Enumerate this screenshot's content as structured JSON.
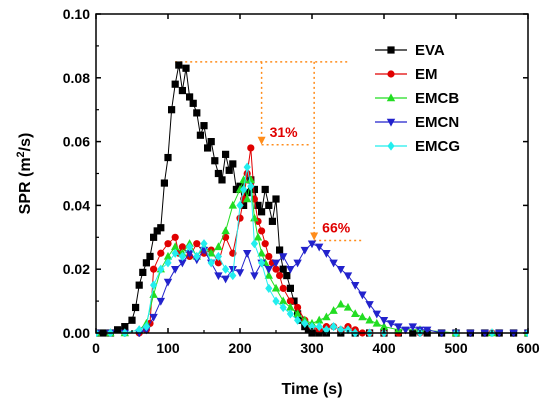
{
  "chart_data": {
    "type": "line",
    "xlabel": "Time (s)",
    "ylabel_main": "SPR (m",
    "ylabel_sup": "2",
    "ylabel_tail": "/s)",
    "xlim": [
      0,
      600
    ],
    "ylim": [
      0,
      0.1
    ],
    "xticks": [
      0,
      100,
      200,
      300,
      400,
      500,
      600
    ],
    "yticks": [
      0.0,
      0.02,
      0.04,
      0.06,
      0.08,
      0.1
    ],
    "ytick_labels": [
      "0.00",
      "0.02",
      "0.04",
      "0.06",
      "0.08",
      "0.10"
    ],
    "grid": false,
    "legend_position": "top-right",
    "annotation_color": "#ff8c1a",
    "annotation_text_color": "#e00000",
    "annotations": [
      {
        "text": "31%",
        "x": 230,
        "from_y": 0.085,
        "to_y": 0.059
      },
      {
        "text": "66%",
        "x": 303,
        "from_y": 0.085,
        "to_y": 0.029
      }
    ],
    "series": [
      {
        "name": "EVA",
        "color": "#000000",
        "marker": "square",
        "x": [
          0,
          10,
          20,
          30,
          40,
          50,
          55,
          60,
          65,
          70,
          75,
          80,
          85,
          90,
          95,
          100,
          105,
          110,
          115,
          120,
          125,
          130,
          135,
          140,
          145,
          150,
          155,
          160,
          165,
          170,
          175,
          180,
          185,
          190,
          195,
          200,
          205,
          210,
          215,
          220,
          225,
          230,
          235,
          240,
          245,
          250,
          255,
          260,
          265,
          270,
          275,
          280,
          285,
          290,
          295,
          300,
          310,
          320,
          340,
          360,
          380,
          400,
          420,
          440,
          460,
          480,
          500,
          520,
          540,
          560,
          580,
          600
        ],
        "y": [
          0,
          0,
          0,
          0.001,
          0.002,
          0.004,
          0.008,
          0.015,
          0.019,
          0.022,
          0.024,
          0.03,
          0.032,
          0.033,
          0.047,
          0.055,
          0.07,
          0.078,
          0.084,
          0.076,
          0.083,
          0.074,
          0.072,
          0.069,
          0.062,
          0.065,
          0.058,
          0.06,
          0.054,
          0.05,
          0.048,
          0.056,
          0.051,
          0.053,
          0.045,
          0.046,
          0.04,
          0.044,
          0.048,
          0.045,
          0.04,
          0.038,
          0.045,
          0.04,
          0.035,
          0.042,
          0.026,
          0.02,
          0.018,
          0.014,
          0.01,
          0.006,
          0.004,
          0.002,
          0.001,
          0,
          0,
          0,
          0,
          0,
          0,
          0,
          0,
          0,
          0,
          0,
          0,
          0,
          0,
          0,
          0,
          0
        ]
      },
      {
        "name": "EM",
        "color": "#e00000",
        "marker": "circle",
        "x": [
          0,
          20,
          40,
          60,
          70,
          75,
          80,
          90,
          100,
          110,
          115,
          120,
          130,
          140,
          150,
          160,
          170,
          180,
          190,
          200,
          205,
          210,
          215,
          220,
          225,
          230,
          235,
          240,
          245,
          250,
          255,
          260,
          270,
          280,
          290,
          300,
          310,
          320,
          330,
          340,
          350,
          360,
          370,
          380,
          400,
          420,
          450,
          500,
          550,
          600
        ],
        "y": [
          0,
          0,
          0,
          0,
          0.001,
          0.003,
          0.02,
          0.025,
          0.028,
          0.03,
          0.025,
          0.027,
          0.024,
          0.028,
          0.025,
          0.026,
          0.022,
          0.03,
          0.025,
          0.036,
          0.042,
          0.05,
          0.058,
          0.042,
          0.035,
          0.032,
          0.028,
          0.024,
          0.022,
          0.02,
          0.018,
          0.014,
          0.01,
          0.008,
          0.004,
          0.002,
          0.001,
          0.002,
          0.002,
          0.001,
          0.002,
          0.001,
          0,
          0,
          0,
          0,
          0,
          0,
          0,
          0
        ]
      },
      {
        "name": "EMCB",
        "color": "#22dd22",
        "marker": "triangle-up",
        "x": [
          0,
          20,
          40,
          60,
          70,
          80,
          90,
          100,
          110,
          120,
          130,
          140,
          150,
          160,
          170,
          180,
          190,
          200,
          205,
          210,
          215,
          220,
          225,
          230,
          235,
          240,
          250,
          260,
          270,
          280,
          290,
          300,
          310,
          320,
          330,
          340,
          350,
          360,
          370,
          380,
          390,
          400,
          420,
          450,
          500,
          550,
          600
        ],
        "y": [
          0,
          0,
          0,
          0.001,
          0.003,
          0.012,
          0.02,
          0.024,
          0.027,
          0.025,
          0.028,
          0.024,
          0.027,
          0.025,
          0.027,
          0.032,
          0.04,
          0.045,
          0.048,
          0.042,
          0.048,
          0.036,
          0.03,
          0.025,
          0.022,
          0.018,
          0.014,
          0.01,
          0.008,
          0.006,
          0.004,
          0.003,
          0.004,
          0.005,
          0.007,
          0.009,
          0.008,
          0.006,
          0.005,
          0.004,
          0.003,
          0.002,
          0.001,
          0.001,
          0,
          0,
          0
        ]
      },
      {
        "name": "EMCN",
        "color": "#2222cc",
        "marker": "triangle-down",
        "x": [
          0,
          20,
          40,
          60,
          70,
          80,
          90,
          100,
          110,
          120,
          130,
          140,
          150,
          160,
          170,
          180,
          190,
          200,
          210,
          220,
          230,
          240,
          250,
          260,
          270,
          280,
          290,
          300,
          310,
          320,
          330,
          340,
          350,
          360,
          370,
          380,
          390,
          400,
          410,
          420,
          430,
          440,
          450,
          460,
          480,
          500,
          520,
          540,
          560,
          580,
          600
        ],
        "y": [
          0,
          0,
          0,
          0,
          0.001,
          0.005,
          0.01,
          0.016,
          0.02,
          0.022,
          0.025,
          0.023,
          0.026,
          0.022,
          0.018,
          0.017,
          0.02,
          0.019,
          0.025,
          0.018,
          0.022,
          0.02,
          0.022,
          0.024,
          0.02,
          0.022,
          0.026,
          0.028,
          0.027,
          0.025,
          0.022,
          0.02,
          0.018,
          0.015,
          0.012,
          0.009,
          0.006,
          0.004,
          0.003,
          0.002,
          0.001,
          0.002,
          0.001,
          0.001,
          0,
          0,
          0,
          0,
          0,
          0,
          0
        ]
      },
      {
        "name": "EMCG",
        "color": "#22eeee",
        "marker": "diamond",
        "x": [
          0,
          20,
          40,
          60,
          70,
          80,
          90,
          100,
          110,
          120,
          130,
          140,
          150,
          160,
          170,
          180,
          190,
          200,
          205,
          210,
          215,
          220,
          230,
          240,
          250,
          260,
          270,
          280,
          290,
          300,
          310,
          320,
          330,
          340,
          350,
          360,
          380,
          400,
          450,
          500,
          550,
          600
        ],
        "y": [
          0,
          0,
          0,
          0.001,
          0.002,
          0.015,
          0.02,
          0.022,
          0.025,
          0.024,
          0.027,
          0.024,
          0.028,
          0.022,
          0.024,
          0.02,
          0.018,
          0.04,
          0.045,
          0.052,
          0.046,
          0.028,
          0.022,
          0.014,
          0.01,
          0.008,
          0.006,
          0.004,
          0.003,
          0.002,
          0.002,
          0.001,
          0.002,
          0.001,
          0.001,
          0,
          0,
          0,
          0,
          0,
          0,
          0
        ]
      }
    ]
  }
}
